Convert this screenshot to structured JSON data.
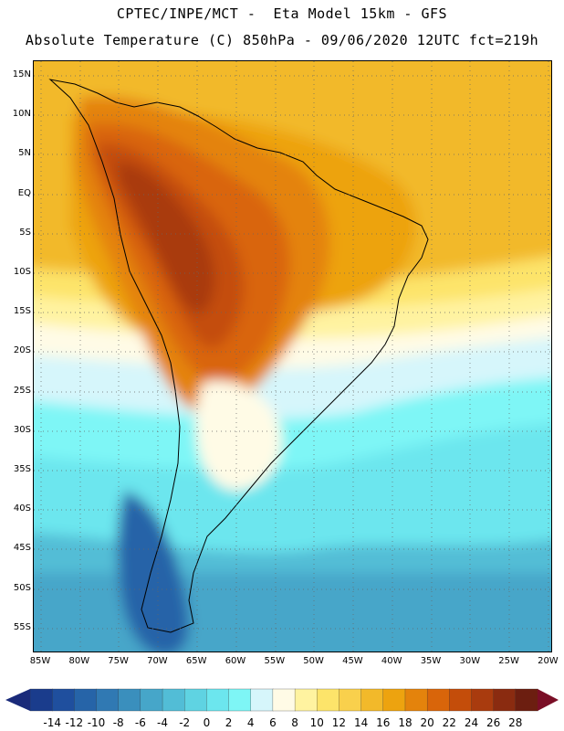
{
  "header": {
    "line1": "CPTEC/INPE/MCT -  Eta Model 15km - GFS",
    "line2": "Absolute Temperature (C) 850hPa - 09/06/2020 12UTC fct=219h"
  },
  "lat_labels": [
    "15N",
    "10N",
    "5N",
    "EQ",
    "5S",
    "10S",
    "15S",
    "20S",
    "25S",
    "30S",
    "35S",
    "40S",
    "45S",
    "50S",
    "55S"
  ],
  "lon_labels": [
    "85W",
    "80W",
    "75W",
    "70W",
    "65W",
    "60W",
    "55W",
    "50W",
    "45W",
    "40W",
    "35W",
    "30W",
    "25W",
    "20W"
  ],
  "colorbar": {
    "labels": [
      "-14",
      "-12",
      "-10",
      "-8",
      "-6",
      "-4",
      "-2",
      "0",
      "2",
      "4",
      "6",
      "8",
      "10",
      "12",
      "14",
      "16",
      "18",
      "20",
      "22",
      "24",
      "26",
      "28"
    ],
    "colors": [
      "#1a3c8c",
      "#1f4f9e",
      "#2664a8",
      "#3079b3",
      "#3a8fbd",
      "#46a6c9",
      "#52bdd6",
      "#5fd3e2",
      "#6ce6ee",
      "#7ef6f6",
      "#d6f6fb",
      "#fffbe6",
      "#fff3a0",
      "#fde46a",
      "#f9d04c",
      "#f2b92a",
      "#eda30f",
      "#e4830c",
      "#d9650a",
      "#c44d0a",
      "#a93b0e",
      "#8a2b10",
      "#6c1e10"
    ],
    "low_arrow_color": "#1a2a7a",
    "high_arrow_color": "#7a0e26"
  }
}
